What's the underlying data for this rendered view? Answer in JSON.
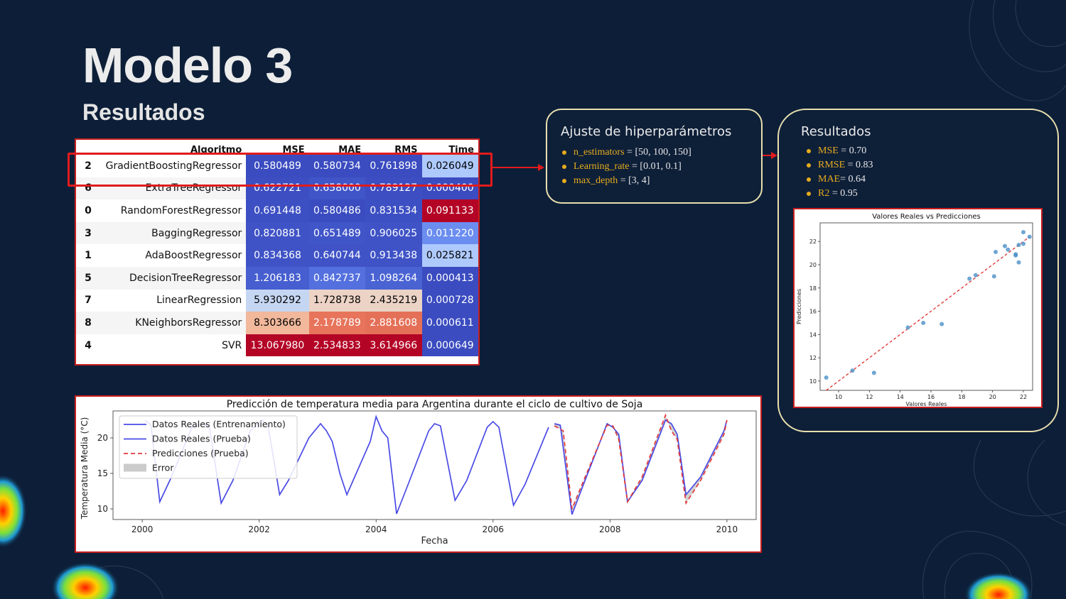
{
  "slide": {
    "title": "Modelo 3",
    "subtitle": "Resultados"
  },
  "results_table": {
    "columns": [
      "",
      "Algoritmo",
      "MSE",
      "MAE",
      "RMS",
      "Time"
    ],
    "rows": [
      {
        "idx": "2",
        "alg": "GradientBoostingRegressor",
        "vals": [
          "0.580489",
          "0.580734",
          "0.761898",
          "0.026049"
        ],
        "colors": [
          "#3b4cc0",
          "#3b4cc0",
          "#3b4cc0",
          "#aec9fc"
        ],
        "text": [
          "#fff",
          "#fff",
          "#fff",
          "#000"
        ]
      },
      {
        "idx": "6",
        "alg": "ExtraTreeRegressor",
        "vals": [
          "0.622721",
          "0.658000",
          "0.789127",
          "0.000400"
        ],
        "colors": [
          "#3c4ec2",
          "#4055c8",
          "#3c4ec2",
          "#3b4cc0"
        ],
        "text": [
          "#fff",
          "#fff",
          "#fff",
          "#fff"
        ]
      },
      {
        "idx": "0",
        "alg": "RandomForestRegressor",
        "vals": [
          "0.691448",
          "0.580486",
          "0.831534",
          "0.091133"
        ],
        "colors": [
          "#3d50c3",
          "#3b4cc0",
          "#3d50c3",
          "#b40426"
        ],
        "text": [
          "#fff",
          "#fff",
          "#fff",
          "#fff"
        ]
      },
      {
        "idx": "3",
        "alg": "BaggingRegressor",
        "vals": [
          "0.820881",
          "0.651489",
          "0.906025",
          "0.011220"
        ],
        "colors": [
          "#3f53c6",
          "#4055c8",
          "#3f53c6",
          "#6b8df0"
        ],
        "text": [
          "#fff",
          "#fff",
          "#fff",
          "#fff"
        ]
      },
      {
        "idx": "1",
        "alg": "AdaBoostRegressor",
        "vals": [
          "0.834368",
          "0.640744",
          "0.913438",
          "0.025821"
        ],
        "colors": [
          "#3f53c6",
          "#3f53c6",
          "#3f53c6",
          "#aec9fc"
        ],
        "text": [
          "#fff",
          "#fff",
          "#fff",
          "#000"
        ]
      },
      {
        "idx": "5",
        "alg": "DecisionTreeRegressor",
        "vals": [
          "1.206183",
          "0.842737",
          "1.098264",
          "0.000413"
        ],
        "colors": [
          "#465ecf",
          "#5470de",
          "#4a63d3",
          "#3b4cc0"
        ],
        "text": [
          "#fff",
          "#fff",
          "#fff",
          "#fff"
        ]
      },
      {
        "idx": "7",
        "alg": "LinearRegression",
        "vals": [
          "5.930292",
          "1.728738",
          "2.435219",
          "0.000728"
        ],
        "colors": [
          "#c5d6f2",
          "#ecd3c5",
          "#ebd3c6",
          "#3b4cc0"
        ],
        "text": [
          "#000",
          "#000",
          "#000",
          "#fff"
        ]
      },
      {
        "idx": "8",
        "alg": "KNeighborsRegressor",
        "vals": [
          "8.303666",
          "2.178789",
          "2.881608",
          "0.000611"
        ],
        "colors": [
          "#f1b89c",
          "#e7745b",
          "#e57058",
          "#3b4cc0"
        ],
        "text": [
          "#000",
          "#fff",
          "#fff",
          "#fff"
        ]
      },
      {
        "idx": "4",
        "alg": "SVR",
        "vals": [
          "13.067980",
          "2.534833",
          "3.614966",
          "0.000649"
        ],
        "colors": [
          "#b40426",
          "#b40426",
          "#b40426",
          "#3b4cc0"
        ],
        "text": [
          "#fff",
          "#fff",
          "#fff",
          "#fff"
        ]
      }
    ]
  },
  "hyperparams": {
    "title": "Ajuste de hiperparámetros",
    "items": [
      {
        "key": "n_estimators",
        "val": " = [50, 100, 150]"
      },
      {
        "key": "Learning_rate",
        "val": " = [0.01, 0.1]"
      },
      {
        "key": "max_depth",
        "val": " = [3, 4]"
      }
    ]
  },
  "results_box": {
    "title": "Resultados",
    "items": [
      {
        "key": "MSE",
        "val": " = 0.70"
      },
      {
        "key": "RMSE",
        "val": " = 0.83"
      },
      {
        "key": "MAE",
        "val": "= 0.64"
      },
      {
        "key": "R2",
        "val": " = 0.95"
      }
    ]
  },
  "colors": {
    "accent": "#e6ac1e",
    "box_border": "#e9dfae",
    "highlight": "#e01b1b",
    "background": "#0d1f38"
  },
  "chart_data": [
    {
      "type": "scatter",
      "title": "Valores Reales vs Predicciones",
      "xlabel": "Valores Reales",
      "ylabel": "Predicciones",
      "xlim": [
        8.8,
        22.6
      ],
      "ylim": [
        9.2,
        23.6
      ],
      "xticks": [
        "10",
        "12",
        "14",
        "16",
        "18",
        "20",
        "22"
      ],
      "yticks": [
        "10",
        "12",
        "14",
        "16",
        "18",
        "20",
        "22"
      ],
      "points": [
        [
          9.2,
          10.3
        ],
        [
          10.9,
          10.9
        ],
        [
          12.3,
          10.7
        ],
        [
          14.5,
          14.6
        ],
        [
          15.5,
          15.0
        ],
        [
          16.7,
          14.9
        ],
        [
          18.5,
          18.8
        ],
        [
          18.9,
          19.1
        ],
        [
          20.1,
          19.0
        ],
        [
          20.2,
          21.1
        ],
        [
          20.8,
          21.6
        ],
        [
          21.0,
          21.3
        ],
        [
          21.5,
          20.9
        ],
        [
          21.5,
          20.8
        ],
        [
          21.7,
          20.2
        ],
        [
          21.7,
          21.7
        ],
        [
          22.0,
          22.8
        ],
        [
          22.0,
          21.8
        ],
        [
          22.4,
          22.4
        ]
      ],
      "diagonal": [
        [
          9.2,
          9.2
        ],
        [
          22.4,
          22.4
        ]
      ]
    },
    {
      "type": "line",
      "title": "Predicción de temperatura media para Argentina durante el ciclo de cultivo de Soja",
      "xlabel": "Fecha",
      "ylabel": "Temperatura Media (°C)",
      "xlim": [
        1999.5,
        2010.5
      ],
      "ylim": [
        8.5,
        23.8
      ],
      "xticks": [
        "2000",
        "2002",
        "2004",
        "2006",
        "2008",
        "2010"
      ],
      "yticks": [
        "10",
        "15",
        "20"
      ],
      "legend": [
        "Datos Reales (Entrenamiento)",
        "Datos Reales (Prueba)",
        "Predicciones (Prueba)",
        "Error"
      ],
      "legend_position": "upper-left",
      "series": [
        {
          "name": "Datos Reales (Entrenamiento)",
          "color": "#4a4ae6",
          "points": [
            [
              2000.05,
              22.5
            ],
            [
              2000.15,
              21.8
            ],
            [
              2000.3,
              11.0
            ],
            [
              2000.5,
              14.5
            ],
            [
              2000.85,
              21.5
            ],
            [
              2001.05,
              22.0
            ],
            [
              2001.15,
              21.5
            ],
            [
              2001.35,
              10.8
            ],
            [
              2001.55,
              14.0
            ],
            [
              2001.85,
              21.0
            ],
            [
              2002.05,
              22.5
            ],
            [
              2002.15,
              21.8
            ],
            [
              2002.35,
              12.0
            ],
            [
              2002.5,
              14.0
            ],
            [
              2002.85,
              20.0
            ],
            [
              2003.05,
              22.0
            ],
            [
              2003.15,
              21.0
            ],
            [
              2003.25,
              19.5
            ],
            [
              2003.38,
              15.0
            ],
            [
              2003.5,
              12.0
            ],
            [
              2003.9,
              19.5
            ],
            [
              2004.0,
              23.0
            ],
            [
              2004.1,
              21.0
            ],
            [
              2004.2,
              20.0
            ],
            [
              2004.35,
              9.3
            ],
            [
              2004.55,
              13.5
            ],
            [
              2004.9,
              21.0
            ],
            [
              2005.0,
              22.0
            ],
            [
              2005.1,
              21.7
            ],
            [
              2005.35,
              11.2
            ],
            [
              2005.55,
              14.0
            ],
            [
              2005.9,
              21.5
            ],
            [
              2006.0,
              22.3
            ],
            [
              2006.1,
              21.5
            ],
            [
              2006.35,
              10.5
            ],
            [
              2006.55,
              13.5
            ],
            [
              2006.95,
              21.5
            ]
          ]
        },
        {
          "name": "Datos Reales (Prueba)",
          "color": "#4a4ae6",
          "points": [
            [
              2007.05,
              22.0
            ],
            [
              2007.15,
              21.8
            ],
            [
              2007.35,
              9.2
            ],
            [
              2007.55,
              13.5
            ],
            [
              2007.95,
              22.0
            ],
            [
              2008.05,
              21.5
            ],
            [
              2008.15,
              20.5
            ],
            [
              2008.3,
              11.0
            ],
            [
              2008.55,
              14.0
            ],
            [
              2008.95,
              22.5
            ],
            [
              2009.05,
              22.0
            ],
            [
              2009.15,
              20.5
            ],
            [
              2009.3,
              12.0
            ],
            [
              2009.55,
              14.5
            ],
            [
              2009.95,
              21.0
            ],
            [
              2010.0,
              22.5
            ]
          ]
        },
        {
          "name": "Predicciones (Prueba)",
          "color": "#e23a3a",
          "points": [
            [
              2007.05,
              21.7
            ],
            [
              2007.2,
              21.0
            ],
            [
              2007.35,
              10.0
            ],
            [
              2007.55,
              14.0
            ],
            [
              2007.95,
              21.8
            ],
            [
              2008.05,
              21.7
            ],
            [
              2008.15,
              19.8
            ],
            [
              2008.3,
              11.0
            ],
            [
              2008.55,
              14.5
            ],
            [
              2008.95,
              23.2
            ],
            [
              2009.05,
              21.0
            ],
            [
              2009.15,
              19.8
            ],
            [
              2009.3,
              10.8
            ],
            [
              2009.55,
              14.0
            ],
            [
              2009.95,
              20.5
            ],
            [
              2010.0,
              22.5
            ]
          ]
        }
      ]
    }
  ]
}
